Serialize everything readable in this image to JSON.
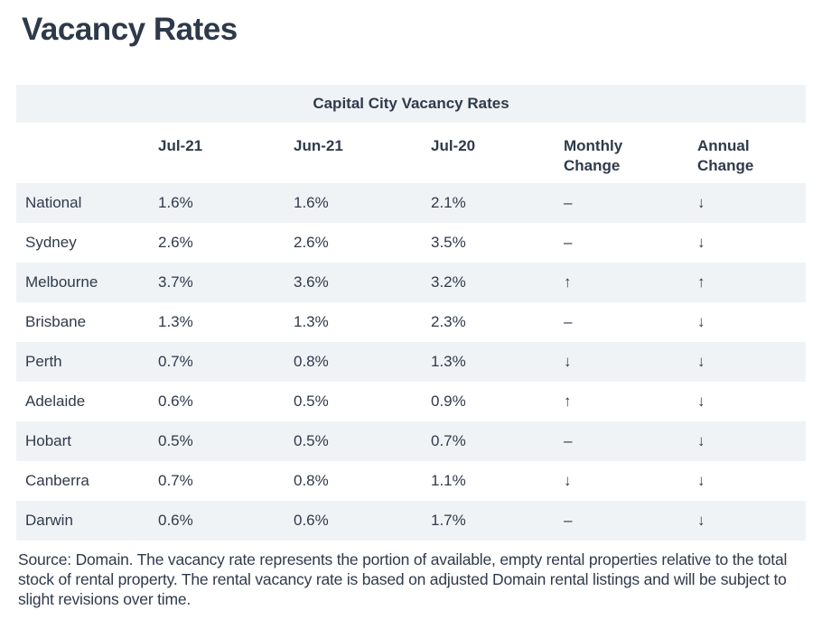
{
  "page": {
    "title": "Vacancy Rates"
  },
  "chart_data": {
    "type": "table",
    "title": "Capital City Vacancy Rates",
    "columns": [
      "",
      "Jul-21",
      "Jun-21",
      "Jul-20",
      "Monthly Change",
      "Annual Change"
    ],
    "rows": [
      [
        "National",
        "1.6%",
        "1.6%",
        "2.1%",
        "–",
        "↓"
      ],
      [
        "Sydney",
        "2.6%",
        "2.6%",
        "3.5%",
        "–",
        "↓"
      ],
      [
        "Melbourne",
        "3.7%",
        "3.6%",
        "3.2%",
        "↑",
        "↑"
      ],
      [
        "Brisbane",
        "1.3%",
        "1.3%",
        "2.3%",
        "–",
        "↓"
      ],
      [
        "Perth",
        "0.7%",
        "0.8%",
        "1.3%",
        "↓",
        "↓"
      ],
      [
        "Adelaide",
        "0.6%",
        "0.5%",
        "0.9%",
        "↑",
        "↓"
      ],
      [
        "Hobart",
        "0.5%",
        "0.5%",
        "0.7%",
        "–",
        "↓"
      ],
      [
        "Canberra",
        "0.7%",
        "0.8%",
        "1.1%",
        "↓",
        "↓"
      ],
      [
        "Darwin",
        "0.6%",
        "0.6%",
        "1.7%",
        "–",
        "↓"
      ]
    ],
    "change_directions": {
      "monthly": [
        "none",
        "none",
        "up",
        "none",
        "down",
        "up",
        "none",
        "down",
        "none"
      ],
      "annual": [
        "down",
        "down",
        "up",
        "down",
        "down",
        "down",
        "down",
        "down",
        "down"
      ]
    },
    "layout_hints": {
      "striped_rows": true,
      "first_stripe": "National",
      "caption_position": "top-center"
    }
  },
  "footer": {
    "note": "Source: Domain. The vacancy rate represents the portion of available, empty rental properties relative to the total stock of rental property. The rental vacancy rate is based on adjusted Domain rental listings and will be subject to slight revisions over time."
  },
  "colors": {
    "text": "#2f3a4b",
    "stripe_bg": "#f0f3f6",
    "background": "#ffffff"
  }
}
